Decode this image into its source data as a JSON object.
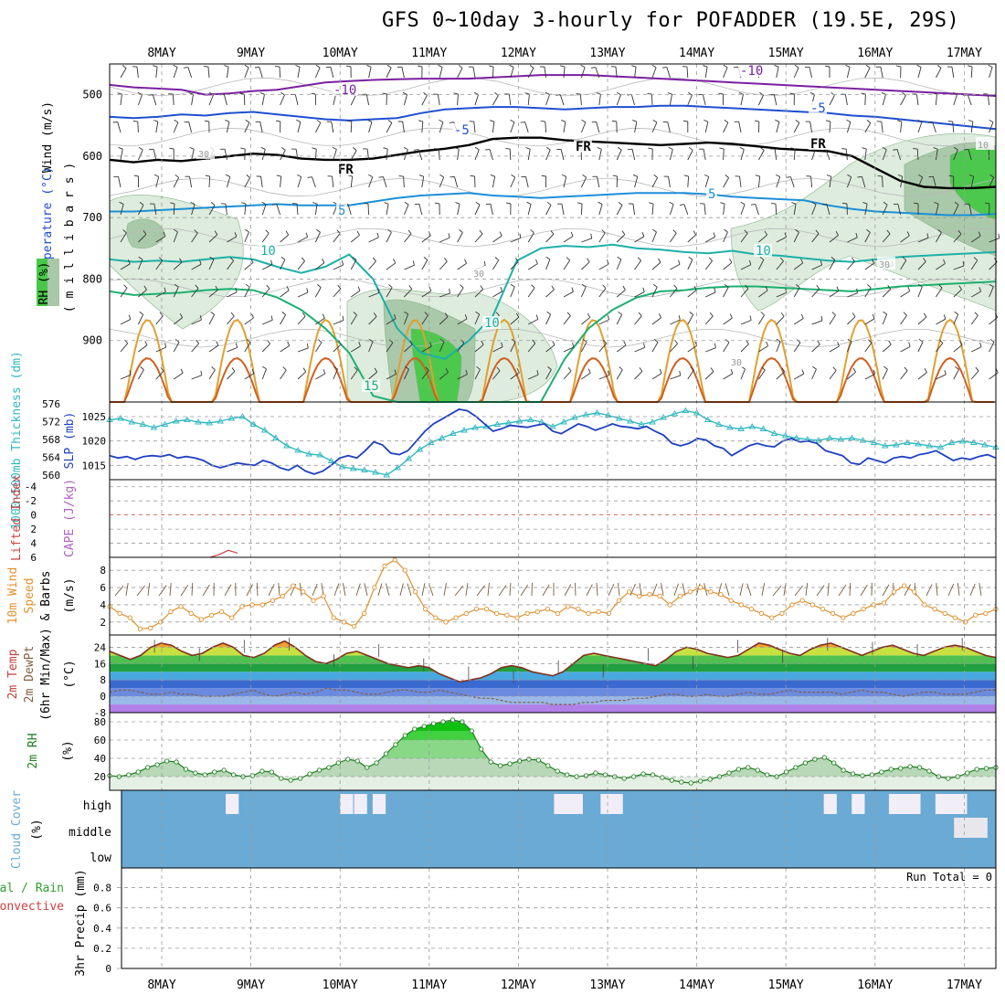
{
  "title": "GFS 0~10day 3-hourly for POFADDER (19.5E, 29S)",
  "dates": [
    "8MAY",
    "9MAY",
    "10MAY",
    "11MAY",
    "12MAY",
    "13MAY",
    "14MAY",
    "15MAY",
    "16MAY",
    "17MAY"
  ],
  "colors": {
    "grid": "#9a9a9a",
    "purple": "#7a1fa0",
    "blue": "#1f4fd0",
    "lightblue": "#1c8fd8",
    "teal": "#1cb0a8",
    "green": "#1cb070",
    "orange": "#e0a030",
    "darkorange": "#d06020",
    "rh_light": "#dcecdc",
    "rh_mid": "#a8c8a8",
    "rh_dark": "#48c848",
    "slp": "#2040c0",
    "thick": "#30b8c0",
    "lifted": "#d04040",
    "wind10": "#e09030",
    "cloud": "#6aaad4",
    "precip_green": "#30a030"
  },
  "chart_data": [
    {
      "type": "contour",
      "panel": "upper_air",
      "ylabel_lines": [
        "Wind (m/s)",
        "Temperature (°C)",
        "RH (%)"
      ],
      "y_axis_label": "( m i l l i b a r s )",
      "y_ticks": [
        "500",
        "600",
        "700",
        "800",
        "900"
      ],
      "ylim": [
        1000,
        450
      ],
      "contour_labels": [
        "-10",
        "-10",
        "-5",
        "-5",
        "FR",
        "FR",
        "FR",
        "5",
        "5",
        "10",
        "10",
        "10",
        "15",
        "30",
        "30",
        "30",
        "30",
        "10"
      ],
      "series": [
        {
          "level": "-10",
          "color": "purple",
          "p": [
            484,
            488,
            490,
            492,
            500,
            498,
            494,
            492,
            486,
            480,
            478,
            476,
            475,
            474,
            474,
            474,
            472,
            470,
            468,
            468,
            468,
            470,
            472,
            474,
            476,
            478,
            480,
            482,
            484,
            486,
            488,
            490,
            492,
            494,
            496,
            498,
            500,
            502
          ]
        },
        {
          "level": "-5",
          "color": "blue",
          "p": [
            536,
            538,
            536,
            532,
            534,
            530,
            528,
            532,
            536,
            540,
            542,
            540,
            538,
            530,
            524,
            522,
            520,
            520,
            522,
            524,
            522,
            520,
            520,
            518,
            518,
            520,
            522,
            524,
            526,
            528,
            530,
            534,
            536,
            540,
            544,
            548,
            552,
            556
          ]
        },
        {
          "level": "FR",
          "color": "black",
          "p": [
            606,
            610,
            606,
            608,
            604,
            600,
            596,
            598,
            604,
            606,
            606,
            604,
            598,
            592,
            588,
            582,
            572,
            570,
            570,
            574,
            576,
            578,
            580,
            582,
            580,
            578,
            580,
            584,
            588,
            590,
            592,
            600,
            620,
            640,
            650,
            652,
            652,
            650
          ]
        },
        {
          "level": "5",
          "color": "lightblue",
          "p": [
            690,
            690,
            688,
            686,
            684,
            682,
            680,
            678,
            680,
            680,
            680,
            674,
            668,
            664,
            662,
            660,
            664,
            666,
            668,
            666,
            664,
            662,
            660,
            660,
            660,
            662,
            666,
            668,
            670,
            672,
            680,
            686,
            690,
            692,
            694,
            696,
            696,
            694
          ]
        },
        {
          "level": "10",
          "color": "teal",
          "p": [
            768,
            772,
            770,
            772,
            768,
            764,
            768,
            780,
            790,
            780,
            760,
            800,
            880,
            920,
            930,
            900,
            860,
            770,
            750,
            746,
            748,
            744,
            750,
            752,
            756,
            758,
            754,
            760,
            762,
            766,
            770,
            772,
            768,
            764,
            762,
            760,
            758,
            756
          ]
        },
        {
          "level": "15",
          "color": "green",
          "p": [
            820,
            826,
            824,
            822,
            818,
            816,
            818,
            830,
            850,
            880,
            920,
            990,
            1000,
            1000,
            1000,
            1000,
            1000,
            1000,
            1000,
            930,
            880,
            850,
            830,
            820,
            818,
            814,
            812,
            812,
            814,
            816,
            818,
            820,
            816,
            812,
            810,
            808,
            806,
            804
          ]
        }
      ]
    },
    {
      "type": "line",
      "panel": "thickness_slp",
      "ylabel_left": "1000-500mb Thickness (dm)",
      "ylabel_right": "SLP (mb)",
      "left_ticks": [
        "576",
        "572",
        "568",
        "564",
        "560"
      ],
      "right_ticks": [
        "1025",
        "1020",
        "1015"
      ],
      "series": [
        {
          "name": "1000-500mb Thickness",
          "color": "thick",
          "y": [
            572.5,
            572.8,
            572.0,
            571.5,
            570.8,
            571.5,
            572.2,
            572.5,
            572.0,
            571.8,
            572.2,
            572.8,
            573.2,
            571.5,
            570.2,
            568.5,
            566.8,
            565.8,
            565.0,
            564.8,
            563.5,
            562.2,
            561.8,
            561.5,
            561.0,
            560.4,
            562.0,
            564.0,
            566.0,
            567.5,
            568.5,
            569.5,
            570.2,
            570.8,
            571.0,
            571.5,
            571.8,
            572.2,
            572.5,
            572.0,
            571.0,
            572.0,
            573.0,
            573.6,
            574.0,
            573.5,
            572.8,
            572.2,
            571.5,
            572.0,
            573.0,
            573.8,
            574.5,
            574.0,
            572.5,
            571.5,
            570.8,
            570.5,
            571.0,
            570.5,
            569.5,
            569.0,
            568.5,
            568.2,
            568.0,
            568.5,
            568.2,
            568.5,
            568.0,
            567.5,
            566.8,
            567.0,
            567.5,
            567.2,
            566.8,
            566.5,
            567.5,
            567.8,
            567.5,
            567.0,
            566.5
          ]
        },
        {
          "name": "SLP",
          "color": "slp",
          "y": [
            1017,
            1016.5,
            1016.8,
            1016.2,
            1016.8,
            1017.0,
            1016.8,
            1017.2,
            1016.5,
            1016.8,
            1016.5,
            1016.0,
            1015.0,
            1014.5,
            1015.0,
            1015.5,
            1015.2,
            1015.0,
            1016.0,
            1015.5,
            1014.5,
            1014.0,
            1015.0,
            1013.8,
            1013.2,
            1013.8,
            1015.0,
            1016.5,
            1017.0,
            1016.5,
            1018.0,
            1019.8,
            1019.2,
            1017.5,
            1017.2,
            1018.0,
            1020.0,
            1022.0,
            1023.5,
            1024.5,
            1025.5,
            1026.5,
            1026.2,
            1025.0,
            1023.5,
            1022.0,
            1022.5,
            1023.2,
            1023.0,
            1022.8,
            1023.2,
            1023.5,
            1022.0,
            1021.5,
            1022.5,
            1023.5,
            1023.0,
            1022.2,
            1022.8,
            1023.5,
            1023.0,
            1022.8,
            1022.5,
            1023.0,
            1022.0,
            1021.2,
            1019.5,
            1019.0,
            1019.5,
            1020.5,
            1020.2,
            1019.0,
            1018.5,
            1017.0,
            1018.0,
            1019.0,
            1019.5,
            1019.0,
            1018.8,
            1020.0,
            1020.5,
            1019.8,
            1020.0,
            1019.5,
            1018.0,
            1017.5,
            1017.0,
            1015.5,
            1015.2,
            1016.5,
            1016.0,
            1015.5,
            1016.5,
            1016.8,
            1016.5,
            1017.2,
            1017.5,
            1018.0,
            1017.0,
            1016.0,
            1016.5,
            1016.2,
            1016.8,
            1017.2,
            1016.5
          ]
        }
      ]
    },
    {
      "type": "line",
      "panel": "lifted_cape",
      "ylabel_left": "Lifted Index",
      "ylabel_right": "CAPE (J/kg)",
      "y_ticks": [
        "-4",
        "-2",
        "0",
        "2",
        "4",
        "6"
      ],
      "ylim": [
        6,
        -5
      ],
      "series": [
        {
          "name": "Lifted Index",
          "color": "lifted",
          "x_index": [
            11,
            12,
            13,
            14
          ],
          "y": [
            6.0,
            5.6,
            5.0,
            5.4
          ]
        }
      ]
    },
    {
      "type": "line",
      "panel": "wind10",
      "ylabel": "10m Wind Speed & Barbs (m/s)",
      "y_ticks": [
        "8",
        "6",
        "4",
        "2"
      ],
      "ylim": [
        0.5,
        9.5
      ],
      "series": [
        {
          "name": "10m Wind Speed",
          "color": "wind10",
          "y": [
            3.8,
            3.0,
            2.5,
            1.2,
            1.3,
            2.0,
            3.2,
            3.8,
            3.0,
            2.3,
            2.8,
            3.2,
            2.5,
            3.8,
            4.0,
            4.0,
            4.5,
            5.0,
            6.2,
            5.5,
            4.5,
            5.0,
            2.5,
            2.0,
            1.5,
            3.0,
            6.0,
            8.5,
            9.2,
            8.0,
            5.5,
            3.5,
            2.5,
            2.0,
            2.5,
            3.0,
            3.5,
            3.5,
            3.0,
            2.8,
            2.5,
            3.0,
            3.2,
            3.5,
            3.0,
            3.8,
            3.5,
            3.0,
            3.2,
            3.0,
            4.5,
            5.5,
            5.0,
            5.2,
            5.0,
            4.0,
            5.0,
            5.5,
            6.0,
            5.5,
            5.2,
            4.5,
            4.0,
            3.5,
            3.0,
            2.5,
            3.0,
            4.0,
            4.5,
            4.0,
            3.5,
            3.0,
            2.5,
            3.0,
            3.5,
            4.0,
            4.2,
            5.5,
            6.2,
            5.5,
            4.0,
            3.5,
            3.0,
            2.5,
            2.0,
            2.8,
            3.0,
            3.5
          ]
        }
      ]
    },
    {
      "type": "area",
      "panel": "temp2m",
      "ylabel": "2m Temp 2m DewPt (6hr Min/Max) (°C)",
      "y_ticks": [
        "24",
        "16",
        "8",
        "0",
        "-8"
      ],
      "ylim": [
        -8,
        30
      ],
      "series": [
        {
          "name": "2m Temp",
          "color": "#803020",
          "y": [
            22,
            20,
            18,
            20,
            24,
            26,
            25,
            22,
            20,
            21,
            24,
            26,
            24,
            20,
            19,
            21,
            25,
            27,
            24,
            20,
            17,
            16,
            18,
            21,
            22,
            20,
            18,
            16,
            15,
            14,
            15,
            14,
            11,
            9,
            7,
            8,
            9,
            11,
            14,
            15,
            14,
            12,
            11,
            10,
            12,
            16,
            20,
            21,
            20,
            19,
            18,
            17,
            16,
            15,
            18,
            22,
            24,
            23,
            21,
            20,
            19,
            20,
            23,
            26,
            25,
            23,
            21,
            20,
            23,
            25,
            26,
            24,
            22,
            20,
            22,
            24,
            25,
            23,
            21,
            20,
            22,
            24,
            25,
            24,
            22,
            20,
            19
          ]
        },
        {
          "name": "2m DewPt",
          "color": "#806040",
          "y": [
            2,
            3,
            3,
            2,
            1,
            1,
            2,
            1,
            1,
            0,
            0,
            0,
            1,
            2,
            3,
            1,
            0,
            1,
            2,
            1,
            2,
            4,
            3,
            3,
            2,
            1,
            1,
            2,
            3,
            3,
            2,
            2,
            3,
            2,
            1,
            0,
            -1,
            -1,
            -2,
            -3,
            -3,
            -3,
            -3,
            -4,
            -4,
            -4,
            -3,
            -3,
            -2,
            -2,
            -2,
            -1,
            -1,
            0,
            1,
            1,
            0,
            0,
            1,
            0,
            0,
            1,
            2,
            1,
            1,
            2,
            3,
            2,
            2,
            2,
            2,
            1,
            2,
            3,
            2,
            2,
            1,
            0,
            1,
            2,
            2,
            1,
            1,
            1,
            2,
            3,
            3
          ]
        }
      ]
    },
    {
      "type": "area",
      "panel": "rh2m",
      "ylabel": "2m RH (%)",
      "y_ticks": [
        "80",
        "60",
        "40",
        "20"
      ],
      "ylim": [
        5,
        90
      ],
      "series": [
        {
          "name": "2m RH",
          "color": "#30a030",
          "y": [
            21,
            20,
            22,
            25,
            30,
            33,
            37,
            36,
            28,
            24,
            22,
            25,
            27,
            22,
            20,
            21,
            26,
            25,
            18,
            16,
            18,
            23,
            27,
            30,
            35,
            39,
            37,
            30,
            35,
            45,
            55,
            65,
            72,
            75,
            78,
            80,
            82,
            80,
            70,
            50,
            36,
            32,
            34,
            37,
            39,
            38,
            32,
            26,
            22,
            20,
            21,
            24,
            22,
            20,
            18,
            20,
            23,
            22,
            19,
            16,
            14,
            13,
            15,
            17,
            20,
            24,
            28,
            30,
            27,
            22,
            20,
            25,
            30,
            35,
            39,
            41,
            35,
            27,
            23,
            21,
            22,
            25,
            28,
            29,
            31,
            30,
            26,
            20,
            18,
            20,
            24,
            28,
            29,
            30
          ]
        }
      ]
    },
    {
      "type": "bar",
      "panel": "cloud",
      "ylabel": "Cloud Cover (%)",
      "y_ticks": [
        "high",
        "middle",
        "low"
      ],
      "series": [
        {
          "name": "high cloud gaps",
          "start_x": [
            11.2,
            23.5,
            25.0,
            27.0,
            46.5,
            47.5,
            48.2,
            51.5,
            52.2,
            52.5,
            75.5,
            78.5,
            82.5,
            83.5,
            84.5,
            87.5,
            88.5,
            89.5
          ]
        },
        {
          "name": "middle cloud gaps",
          "start_x": [
            89.5,
            90.2,
            91.5
          ]
        }
      ]
    },
    {
      "type": "bar",
      "panel": "precip",
      "ylabel": "3hr Precip (mm)",
      "ylabel_left": [
        "Total / Rain",
        "Convective"
      ],
      "y_ticks": [
        "0.8",
        "0.6",
        "0.4",
        "0.2",
        "0"
      ],
      "ylim": [
        0,
        0.95
      ],
      "run_total": "Run Total = 0",
      "series": [
        {
          "name": "3hr Precip",
          "values": []
        }
      ]
    }
  ]
}
